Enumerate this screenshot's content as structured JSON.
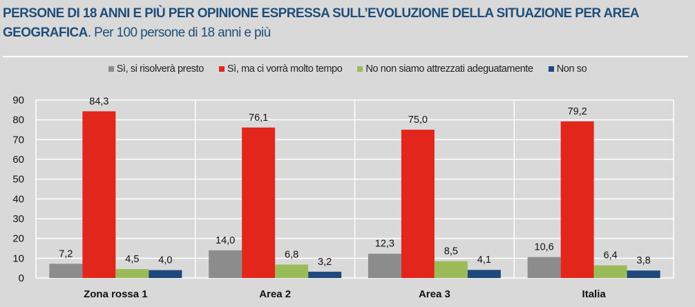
{
  "title": {
    "bold": "PERSONE DI 18 ANNI E PIÙ PER OPINIONE ESPRESSA SULL’EVOLUZIONE DELLA SITUAZIONE PER AREA GEOGRAFICA",
    "rest": ". Per 100 persone di 18 anni e più"
  },
  "chart_data": {
    "type": "bar",
    "categories": [
      "Zona rossa 1",
      "Area 2",
      "Area 3",
      "Italia"
    ],
    "series": [
      {
        "name": "Sì, si risolverà presto",
        "color": "#8c8c8c",
        "values": [
          7.2,
          14.0,
          12.3,
          10.6
        ],
        "labels": [
          "7,2",
          "14,0",
          "12,3",
          "10,6"
        ]
      },
      {
        "name": "Sì, ma ci vorrà molto tempo",
        "color": "#e3261b",
        "values": [
          84.3,
          76.1,
          75.0,
          79.2
        ],
        "labels": [
          "84,3",
          "76,1",
          "75,0",
          "79,2"
        ]
      },
      {
        "name": "No non siamo attrezzati adeguatamente",
        "color": "#9bbb59",
        "values": [
          4.5,
          6.8,
          8.5,
          6.4
        ],
        "labels": [
          "4,5",
          "6,8",
          "8,5",
          "6,4"
        ]
      },
      {
        "name": "Non so",
        "color": "#1f497d",
        "values": [
          4.0,
          3.2,
          4.1,
          3.8
        ],
        "labels": [
          "4,0",
          "3,2",
          "4,1",
          "3,8"
        ]
      }
    ],
    "ylim": [
      0,
      90
    ],
    "yticks": [
      "0",
      "10",
      "20",
      "30",
      "40",
      "50",
      "60",
      "70",
      "80",
      "90"
    ],
    "grid": true,
    "legend": "top-center"
  }
}
